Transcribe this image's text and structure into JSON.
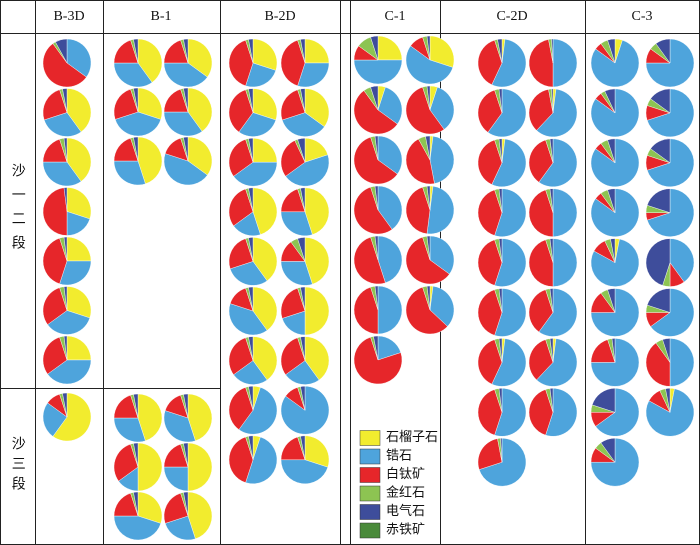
{
  "chart_data": {
    "type": "pie-grid",
    "legend": [
      {
        "name": "石榴子石",
        "color": "#f2ec2e"
      },
      {
        "name": "锆石",
        "color": "#4ea4dc"
      },
      {
        "name": "白钛矿",
        "color": "#e6262a"
      },
      {
        "name": "金红石",
        "color": "#8dc452"
      },
      {
        "name": "电气石",
        "color": "#3e4d9b"
      },
      {
        "name": "赤铁矿",
        "color": "#4a8a3a"
      }
    ],
    "rows": [
      "沙一二段",
      "沙三段"
    ],
    "columns": [
      {
        "name": "B-3D",
        "pies": [
          [
            0,
            35,
            55,
            2,
            8,
            0
          ],
          [
            40,
            30,
            25,
            2,
            3,
            0
          ],
          [
            40,
            35,
            20,
            3,
            2,
            0
          ],
          [
            30,
            20,
            48,
            0,
            2,
            0
          ],
          [
            25,
            30,
            40,
            3,
            2,
            0
          ],
          [
            30,
            35,
            30,
            3,
            2,
            0
          ],
          [
            25,
            40,
            30,
            3,
            2,
            0
          ]
        ],
        "pies_lower": [
          [
            60,
            25,
            10,
            2,
            3,
            0
          ]
        ]
      },
      {
        "name": "B-1",
        "pies": [
          [
            40,
            35,
            20,
            2,
            3,
            0
          ],
          [
            35,
            40,
            20,
            2,
            3,
            0
          ],
          [
            30,
            40,
            25,
            2,
            3,
            0
          ],
          [
            40,
            35,
            20,
            2,
            3,
            0
          ],
          [
            45,
            30,
            20,
            2,
            3,
            0
          ],
          [
            35,
            45,
            15,
            2,
            3,
            0
          ]
        ],
        "pies_lower": [
          [
            45,
            30,
            20,
            2,
            3,
            0
          ],
          [
            45,
            35,
            15,
            2,
            3,
            0
          ],
          [
            50,
            15,
            30,
            2,
            3,
            0
          ],
          [
            50,
            25,
            20,
            2,
            3,
            0
          ],
          [
            30,
            45,
            20,
            2,
            3,
            0
          ],
          [
            45,
            25,
            25,
            2,
            3,
            0
          ]
        ]
      },
      {
        "name": "B-2D",
        "pies": [
          [
            30,
            25,
            40,
            2,
            3,
            0
          ],
          [
            25,
            30,
            40,
            2,
            3,
            0
          ],
          [
            30,
            30,
            35,
            2,
            3,
            0
          ],
          [
            35,
            35,
            25,
            2,
            3,
            0
          ],
          [
            25,
            40,
            30,
            2,
            3,
            0
          ],
          [
            20,
            45,
            28,
            2,
            5,
            0
          ],
          [
            45,
            20,
            30,
            2,
            3,
            0
          ],
          [
            45,
            30,
            20,
            2,
            3,
            0
          ],
          [
            40,
            30,
            25,
            2,
            3,
            0
          ],
          [
            45,
            30,
            15,
            5,
            5,
            0
          ],
          [
            40,
            40,
            15,
            2,
            3,
            0
          ],
          [
            50,
            20,
            25,
            2,
            3,
            0
          ],
          [
            40,
            25,
            30,
            2,
            3,
            0
          ],
          [
            40,
            25,
            30,
            2,
            3,
            0
          ],
          [
            5,
            55,
            35,
            2,
            3,
            0
          ],
          [
            0,
            85,
            10,
            2,
            3,
            0
          ],
          [
            5,
            50,
            40,
            2,
            3,
            0
          ],
          [
            30,
            45,
            20,
            2,
            3,
            0
          ]
        ]
      },
      {
        "name": "C-1",
        "pies": [
          [
            25,
            50,
            10,
            10,
            5,
            0
          ],
          [
            30,
            55,
            10,
            3,
            2,
            0
          ],
          [
            5,
            30,
            55,
            5,
            5,
            0
          ],
          [
            5,
            35,
            55,
            3,
            2,
            0
          ],
          [
            0,
            35,
            60,
            3,
            2,
            0
          ],
          [
            2,
            45,
            45,
            5,
            3,
            0
          ],
          [
            0,
            40,
            55,
            3,
            2,
            0
          ],
          [
            2,
            50,
            43,
            3,
            2,
            0
          ],
          [
            0,
            45,
            50,
            3,
            2,
            0
          ],
          [
            0,
            35,
            60,
            3,
            2,
            0
          ],
          [
            0,
            50,
            45,
            3,
            2,
            0
          ],
          [
            2,
            35,
            58,
            3,
            2,
            0
          ],
          [
            0,
            20,
            75,
            2,
            3,
            0
          ]
        ]
      },
      {
        "name": "C-2D",
        "pies": [
          [
            2,
            55,
            38,
            2,
            3,
            0
          ],
          [
            0,
            50,
            47,
            2,
            1,
            0
          ],
          [
            0,
            60,
            35,
            3,
            2,
            0
          ],
          [
            2,
            60,
            35,
            2,
            1,
            0
          ],
          [
            2,
            55,
            38,
            3,
            2,
            0
          ],
          [
            0,
            60,
            35,
            3,
            2,
            0
          ],
          [
            0,
            55,
            40,
            3,
            2,
            0
          ],
          [
            0,
            50,
            45,
            3,
            2,
            0
          ],
          [
            0,
            55,
            40,
            3,
            2,
            0
          ],
          [
            0,
            50,
            45,
            3,
            2,
            0
          ],
          [
            0,
            55,
            40,
            3,
            2,
            0
          ],
          [
            0,
            60,
            35,
            3,
            2,
            0
          ],
          [
            2,
            55,
            38,
            3,
            2,
            0
          ],
          [
            2,
            60,
            33,
            3,
            2,
            0
          ],
          [
            0,
            55,
            40,
            3,
            2,
            0
          ],
          [
            0,
            55,
            40,
            3,
            2,
            0
          ],
          [
            0,
            70,
            27,
            2,
            1,
            0
          ]
        ]
      },
      {
        "name": "C-3",
        "pies": [
          [
            5,
            80,
            5,
            5,
            5,
            0
          ],
          [
            0,
            75,
            10,
            5,
            10,
            0
          ],
          [
            0,
            85,
            5,
            3,
            7,
            0
          ],
          [
            0,
            70,
            10,
            5,
            15,
            0
          ],
          [
            0,
            85,
            5,
            5,
            5,
            0
          ],
          [
            0,
            70,
            10,
            5,
            15,
            0
          ],
          [
            0,
            85,
            5,
            5,
            5,
            0
          ],
          [
            0,
            70,
            5,
            5,
            20,
            0
          ],
          [
            3,
            80,
            10,
            4,
            3,
            0
          ],
          [
            0,
            40,
            10,
            5,
            45,
            0
          ],
          [
            0,
            75,
            15,
            5,
            5,
            0
          ],
          [
            0,
            65,
            10,
            5,
            20,
            0
          ],
          [
            0,
            75,
            20,
            3,
            2,
            0
          ],
          [
            0,
            50,
            40,
            5,
            5,
            0
          ],
          [
            0,
            65,
            10,
            5,
            20,
            0
          ],
          [
            3,
            80,
            10,
            4,
            3,
            0
          ],
          [
            0,
            75,
            10,
            5,
            10,
            0
          ]
        ]
      }
    ]
  }
}
